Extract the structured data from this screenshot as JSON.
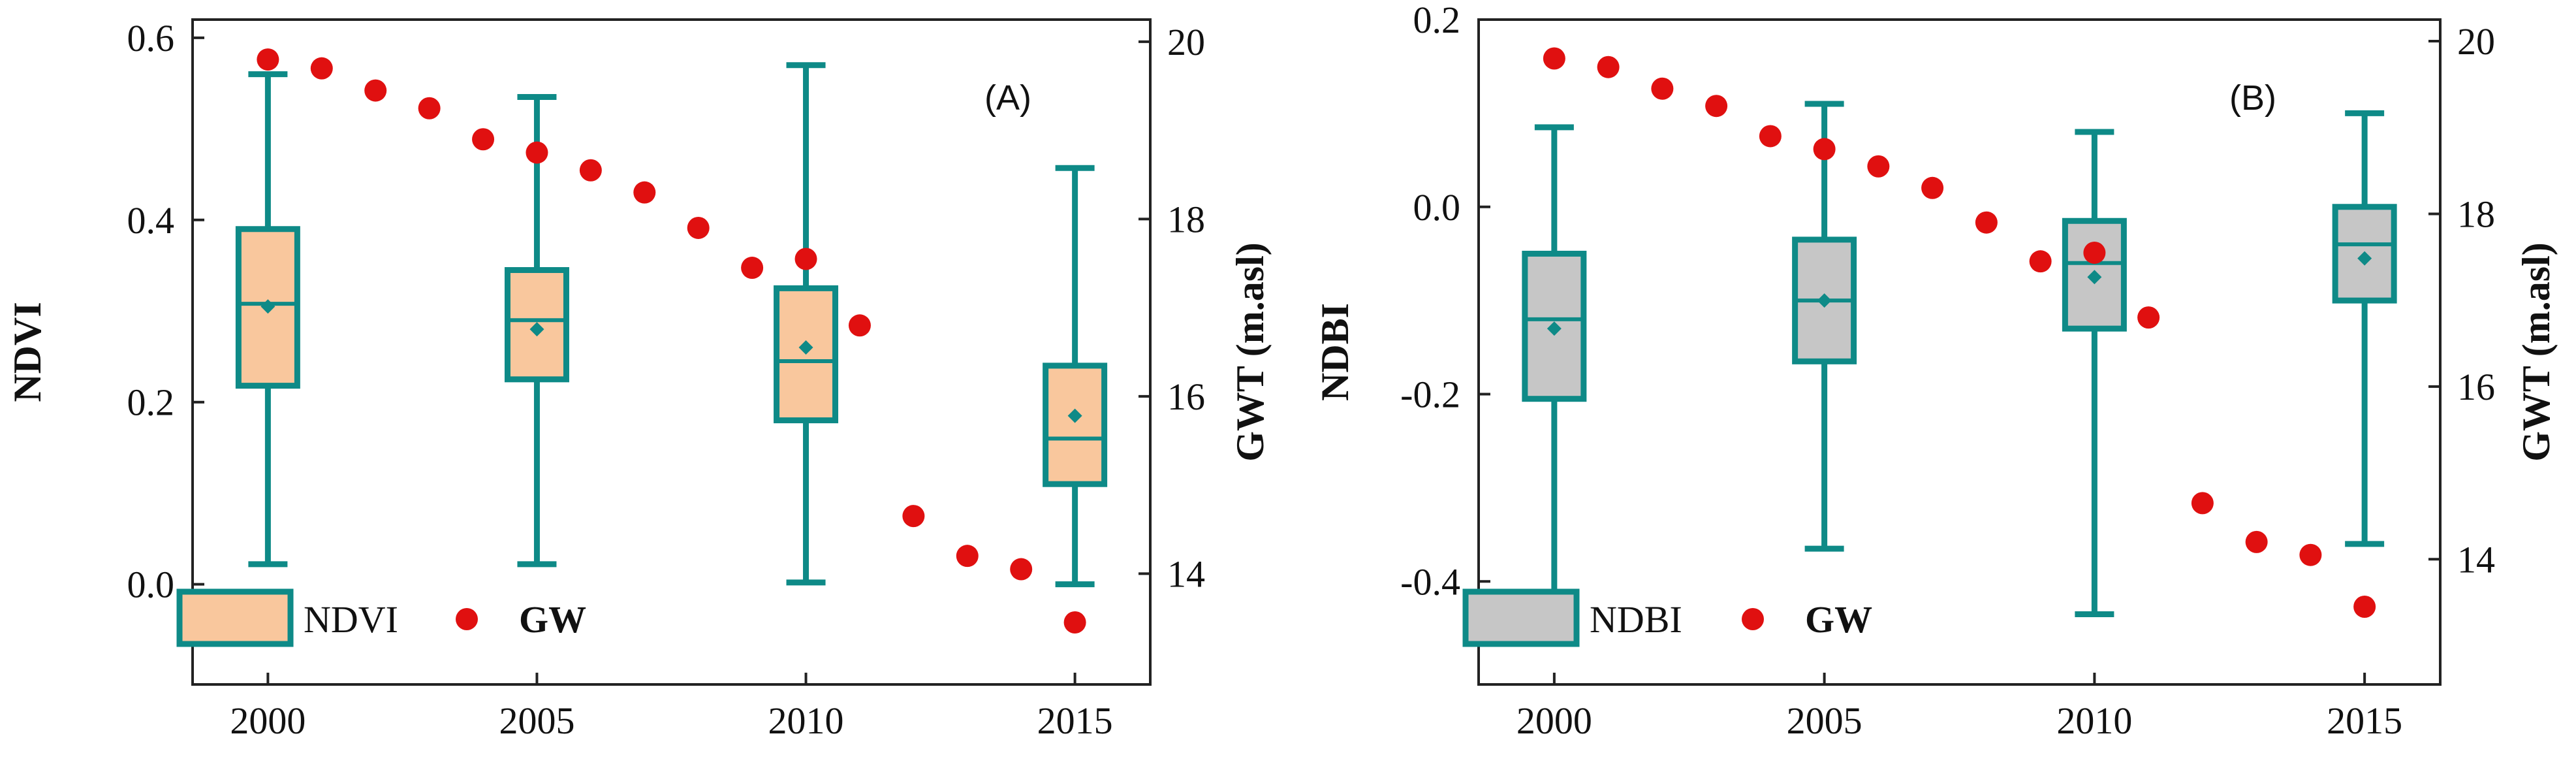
{
  "colors": {
    "box_stroke": "#0e8a87",
    "ndvi_fill": "#f9c79d",
    "ndbi_fill": "#c6c6c6",
    "gw_dot": "#e01010",
    "axis": "#222222"
  },
  "chart_data": [
    {
      "type": "box",
      "panel_label": "(A)",
      "x_ticks": [
        "2000",
        "2005",
        "2010",
        "2015"
      ],
      "xlim": [
        1998.6,
        2016.4
      ],
      "y_left": {
        "label": "NDVI",
        "lim": [
          -0.11,
          0.62
        ],
        "ticks": [
          "0.0",
          "0.2",
          "0.4",
          "0.6"
        ],
        "tick_values": [
          0,
          0.2,
          0.4,
          0.6
        ]
      },
      "y_right": {
        "label": "GWT (m.asl)",
        "lim": [
          12.75,
          20.25
        ],
        "ticks": [
          "14",
          "16",
          "18",
          "20"
        ],
        "tick_values": [
          14,
          16,
          18,
          20
        ]
      },
      "box_series": {
        "name": "NDVI",
        "boxes": [
          {
            "x": 2000,
            "whisker_low": 0.022,
            "q1": 0.218,
            "median": 0.308,
            "mean": 0.305,
            "q3": 0.39,
            "whisker_high": 0.56
          },
          {
            "x": 2005,
            "whisker_low": 0.022,
            "q1": 0.225,
            "median": 0.29,
            "mean": 0.28,
            "q3": 0.345,
            "whisker_high": 0.535
          },
          {
            "x": 2010,
            "whisker_low": 0.002,
            "q1": 0.18,
            "median": 0.245,
            "mean": 0.26,
            "q3": 0.325,
            "whisker_high": 0.57
          },
          {
            "x": 2015,
            "whisker_low": 0.0,
            "q1": 0.11,
            "median": 0.16,
            "mean": 0.185,
            "q3": 0.24,
            "whisker_high": 0.457
          }
        ]
      },
      "scatter_series": {
        "name": "GW",
        "x": [
          2000,
          2001,
          2002,
          2003,
          2004,
          2005,
          2006,
          2007,
          2008,
          2009,
          2010,
          2011,
          2012,
          2013,
          2014,
          2015
        ],
        "y": [
          19.8,
          19.7,
          19.45,
          19.25,
          18.9,
          18.75,
          18.55,
          18.3,
          17.9,
          17.45,
          17.55,
          16.8,
          14.65,
          14.2,
          14.05,
          13.45
        ]
      },
      "legend": {
        "placement": "bottom-left",
        "entries": [
          "NDVI",
          "GW"
        ]
      }
    },
    {
      "type": "box",
      "panel_label": "(B)",
      "x_ticks": [
        "2000",
        "2005",
        "2010",
        "2015"
      ],
      "xlim": [
        1998.6,
        2016.4
      ],
      "y_left": {
        "label": "NDBI",
        "lim": [
          -0.51,
          0.2
        ],
        "ticks": [
          "-0.4",
          "-0.2",
          "0.0",
          "0.2"
        ],
        "tick_values": [
          -0.4,
          -0.2,
          0,
          0.2
        ]
      },
      "y_right": {
        "label": "GWT (m.asl)",
        "lim": [
          12.55,
          20.25
        ],
        "ticks": [
          "14",
          "16",
          "18",
          "20"
        ],
        "tick_values": [
          14,
          16,
          18,
          20
        ]
      },
      "box_series": {
        "name": "NDBI",
        "boxes": [
          {
            "x": 2000,
            "whisker_low": -0.415,
            "q1": -0.205,
            "median": -0.12,
            "mean": -0.13,
            "q3": -0.05,
            "whisker_high": 0.085
          },
          {
            "x": 2005,
            "whisker_low": -0.365,
            "q1": -0.165,
            "median": -0.1,
            "mean": -0.1,
            "q3": -0.035,
            "whisker_high": 0.11
          },
          {
            "x": 2010,
            "whisker_low": -0.435,
            "q1": -0.13,
            "median": -0.06,
            "mean": -0.075,
            "q3": -0.015,
            "whisker_high": 0.08
          },
          {
            "x": 2015,
            "whisker_low": -0.36,
            "q1": -0.1,
            "median": -0.04,
            "mean": -0.055,
            "q3": 0.0,
            "whisker_high": 0.1
          }
        ]
      },
      "scatter_series": {
        "name": "GW",
        "x": [
          2000,
          2001,
          2002,
          2003,
          2004,
          2005,
          2006,
          2007,
          2008,
          2009,
          2010,
          2011,
          2012,
          2013,
          2014,
          2015
        ],
        "y": [
          19.8,
          19.7,
          19.45,
          19.25,
          18.9,
          18.75,
          18.55,
          18.3,
          17.9,
          17.45,
          17.55,
          16.8,
          14.65,
          14.2,
          14.05,
          13.45
        ]
      },
      "legend": {
        "placement": "bottom-left",
        "entries": [
          "NDBI",
          "GW"
        ]
      }
    }
  ]
}
